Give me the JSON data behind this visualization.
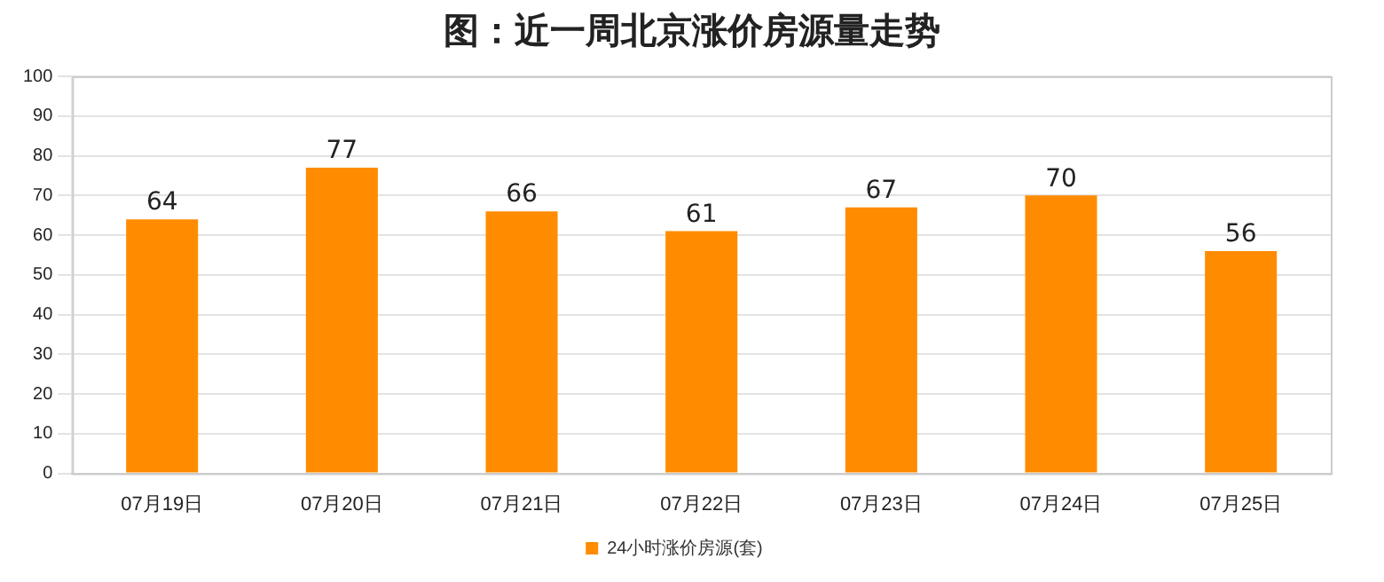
{
  "chart_data": {
    "type": "bar",
    "title": "图：近一周北京涨价房源量走势",
    "categories": [
      "07月19日",
      "07月20日",
      "07月21日",
      "07月22日",
      "07月23日",
      "07月24日",
      "07月25日"
    ],
    "series": [
      {
        "name": "24小时涨价房源(套)",
        "color": "#ff8c00",
        "values": [
          64,
          77,
          66,
          61,
          67,
          70,
          56
        ]
      }
    ],
    "ylim": [
      0,
      100
    ],
    "yticks": [
      0,
      10,
      20,
      30,
      40,
      50,
      60,
      70,
      80,
      90,
      100
    ],
    "grid": "y",
    "legend": "bottom",
    "data_labels": true
  }
}
